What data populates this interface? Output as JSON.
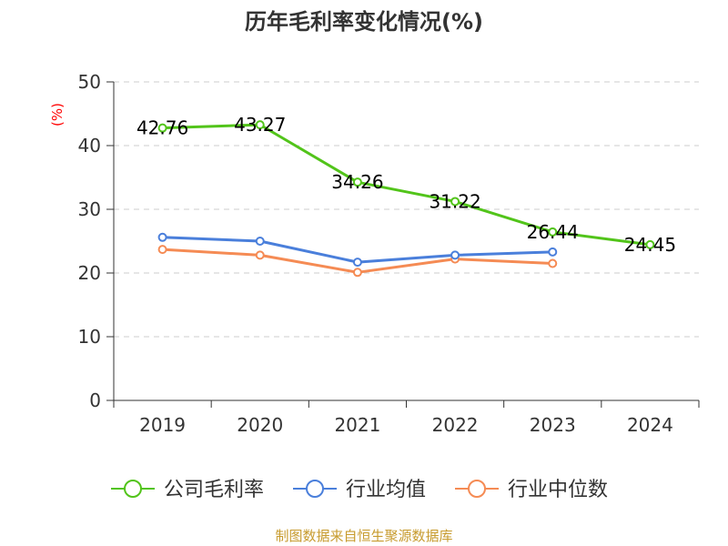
{
  "chart_data": {
    "type": "line",
    "title": "历年毛利率变化情况(%)",
    "ylabel": "(%)",
    "xlabel": "",
    "ylim": [
      0,
      50
    ],
    "yticks": [
      0,
      10,
      20,
      30,
      40,
      50
    ],
    "categories": [
      "2019",
      "2020",
      "2021",
      "2022",
      "2023",
      "2024"
    ],
    "grid": true,
    "legend_position": "bottom",
    "series": [
      {
        "name": "公司毛利率",
        "color": "#52c41a",
        "values": [
          42.76,
          43.27,
          34.26,
          31.22,
          26.44,
          24.45
        ],
        "labels": [
          "42.76",
          "43.27",
          "34.26",
          "31.22",
          "26.44",
          "24.45"
        ],
        "show_labels": true
      },
      {
        "name": "行业均值",
        "color": "#4a7fdb",
        "values": [
          25.6,
          25.0,
          21.7,
          22.8,
          23.3,
          null
        ],
        "show_labels": false
      },
      {
        "name": "行业中位数",
        "color": "#f58b54",
        "values": [
          23.7,
          22.8,
          20.1,
          22.2,
          21.5,
          null
        ],
        "show_labels": false
      }
    ]
  },
  "source": "制图数据来自恒生聚源数据库"
}
